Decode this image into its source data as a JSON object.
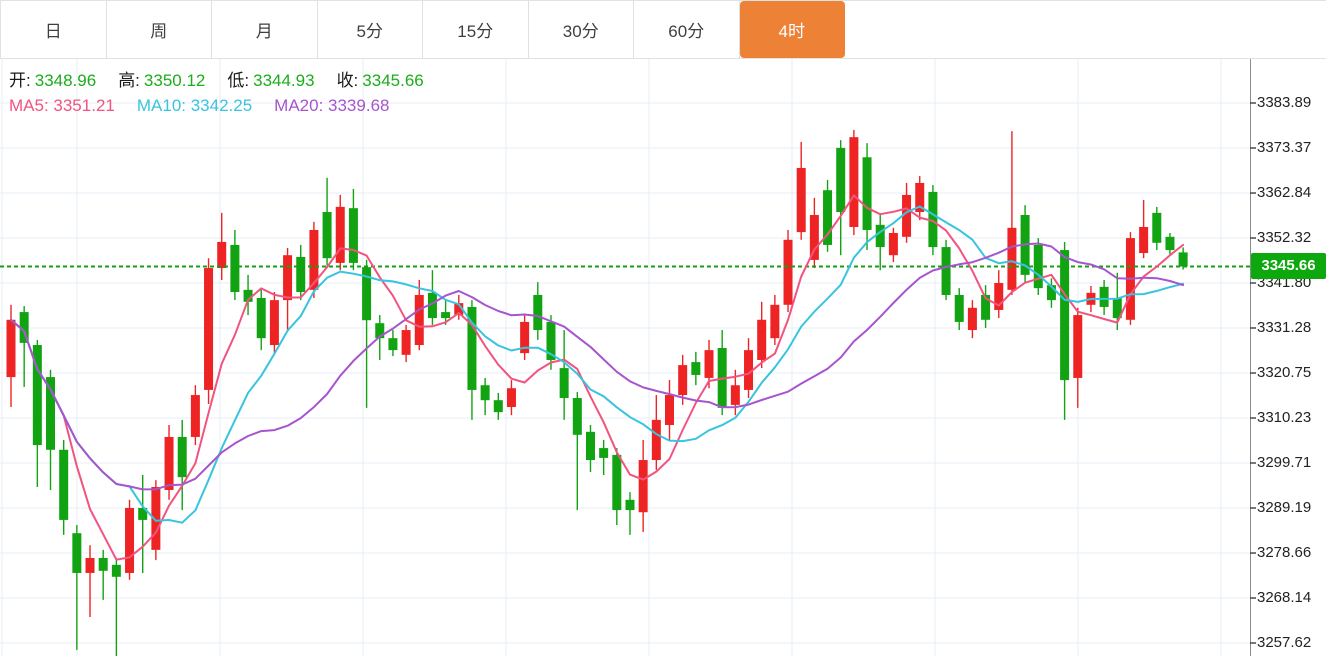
{
  "toolbar": {
    "tabs": [
      {
        "label": "日",
        "active": false
      },
      {
        "label": "周",
        "active": false
      },
      {
        "label": "月",
        "active": false
      },
      {
        "label": "5分",
        "active": false
      },
      {
        "label": "15分",
        "active": false
      },
      {
        "label": "30分",
        "active": false
      },
      {
        "label": "60分",
        "active": false
      },
      {
        "label": "4时",
        "active": true
      }
    ],
    "active_tab_color": "#ed8236"
  },
  "info": {
    "ohlc": [
      {
        "label": "开:",
        "value": "3348.96"
      },
      {
        "label": "高:",
        "value": "3350.12"
      },
      {
        "label": "低:",
        "value": "3344.93"
      },
      {
        "label": "收:",
        "value": "3345.66"
      }
    ],
    "ohlc_value_color": "#1bad1b",
    "ma": [
      {
        "label": "MA5:",
        "value": "3351.21",
        "color": "#f2537f"
      },
      {
        "label": "MA10:",
        "value": "3342.25",
        "color": "#38c4df"
      },
      {
        "label": "MA20:",
        "value": "3339.68",
        "color": "#a655cd"
      }
    ]
  },
  "axis": {
    "max": 3383.89,
    "min": 3257.62,
    "labels": [
      "3383.89",
      "3373.37",
      "3362.84",
      "3352.32",
      "3341.80",
      "3331.28",
      "3320.75",
      "3310.23",
      "3299.71",
      "3289.19",
      "3278.66",
      "3268.14",
      "3257.62"
    ]
  },
  "last_price": {
    "value": "3345.66",
    "badge_color": "#0da80d",
    "line_color": "#14a114"
  },
  "chart_data": {
    "type": "candlestick",
    "title": "",
    "legend": [
      "MA5",
      "MA10",
      "MA20"
    ],
    "up_color": "#ee2424",
    "down_color": "#12a312",
    "grid_color": "#e7eef5",
    "axis_line_color": "#8c8c8c",
    "ylim": [
      3254.0,
      3393.6
    ],
    "candles_format": [
      "open",
      "high",
      "low",
      "close"
    ],
    "candles": [
      [
        3319.8,
        3336.7,
        3312.8,
        3333.2
      ],
      [
        3335.0,
        3336.4,
        3317.5,
        3327.8
      ],
      [
        3327.3,
        3328.5,
        3294.1,
        3303.9
      ],
      [
        3319.8,
        3321.5,
        3293.4,
        3302.8
      ],
      [
        3302.8,
        3305.1,
        3282.9,
        3286.4
      ],
      [
        3283.3,
        3285.2,
        3256.0,
        3274.0
      ],
      [
        3274.0,
        3280.5,
        3263.7,
        3277.5
      ],
      [
        3277.5,
        3279.4,
        3267.7,
        3274.5
      ],
      [
        3275.9,
        3277.5,
        3254.3,
        3273.1
      ],
      [
        3274.0,
        3291.1,
        3272.4,
        3289.2
      ],
      [
        3289.2,
        3296.9,
        3274.0,
        3286.4
      ],
      [
        3279.4,
        3295.7,
        3277.0,
        3294.1
      ],
      [
        3293.4,
        3308.6,
        3291.1,
        3305.8
      ],
      [
        3305.8,
        3309.8,
        3288.7,
        3296.4
      ],
      [
        3305.8,
        3317.9,
        3303.9,
        3315.6
      ],
      [
        3316.8,
        3347.6,
        3313.5,
        3345.3
      ],
      [
        3345.3,
        3358.2,
        3342.5,
        3351.4
      ],
      [
        3350.7,
        3354.2,
        3337.8,
        3339.7
      ],
      [
        3340.2,
        3343.7,
        3334.3,
        3337.4
      ],
      [
        3338.3,
        3340.2,
        3326.1,
        3328.9
      ],
      [
        3327.3,
        3339.7,
        3325.0,
        3337.8
      ],
      [
        3337.8,
        3350.0,
        3330.8,
        3348.3
      ],
      [
        3347.9,
        3350.7,
        3337.8,
        3339.7
      ],
      [
        3340.2,
        3356.1,
        3338.3,
        3354.2
      ],
      [
        3358.4,
        3366.4,
        3345.9,
        3347.6
      ],
      [
        3346.5,
        3362.4,
        3344.8,
        3359.6
      ],
      [
        3359.3,
        3363.8,
        3344.8,
        3346.5
      ],
      [
        3345.5,
        3347.2,
        3312.6,
        3333.1
      ],
      [
        3332.4,
        3334.3,
        3323.8,
        3328.9
      ],
      [
        3328.9,
        3330.8,
        3324.7,
        3326.1
      ],
      [
        3325.0,
        3332.0,
        3323.3,
        3330.8
      ],
      [
        3327.3,
        3342.5,
        3326.1,
        3339.0
      ],
      [
        3339.5,
        3344.8,
        3332.0,
        3333.6
      ],
      [
        3335.0,
        3337.8,
        3332.0,
        3333.6
      ],
      [
        3334.3,
        3339.0,
        3333.2,
        3337.1
      ],
      [
        3336.2,
        3337.8,
        3309.8,
        3316.8
      ],
      [
        3317.9,
        3319.6,
        3310.9,
        3314.4
      ],
      [
        3314.4,
        3316.1,
        3309.8,
        3311.6
      ],
      [
        3312.8,
        3319.1,
        3310.9,
        3317.2
      ],
      [
        3325.4,
        3334.3,
        3323.8,
        3332.7
      ],
      [
        3339.0,
        3342.0,
        3328.5,
        3330.8
      ],
      [
        3332.7,
        3334.3,
        3321.5,
        3323.8
      ],
      [
        3321.9,
        3330.8,
        3309.8,
        3314.9
      ],
      [
        3314.9,
        3316.3,
        3288.7,
        3306.3
      ],
      [
        3307.0,
        3308.6,
        3297.6,
        3300.4
      ],
      [
        3303.2,
        3305.1,
        3296.9,
        3300.9
      ],
      [
        3301.6,
        3303.2,
        3285.2,
        3288.7
      ],
      [
        3291.1,
        3292.9,
        3282.9,
        3288.7
      ],
      [
        3288.2,
        3305.1,
        3283.6,
        3300.4
      ],
      [
        3300.4,
        3315.6,
        3298.1,
        3309.8
      ],
      [
        3308.6,
        3319.1,
        3305.1,
        3315.6
      ],
      [
        3315.6,
        3325.0,
        3313.3,
        3322.6
      ],
      [
        3323.3,
        3325.7,
        3317.9,
        3320.3
      ],
      [
        3319.6,
        3328.5,
        3317.2,
        3326.1
      ],
      [
        3326.6,
        3330.8,
        3310.9,
        3312.6
      ],
      [
        3313.3,
        3321.5,
        3310.9,
        3317.9
      ],
      [
        3316.8,
        3328.9,
        3314.9,
        3326.1
      ],
      [
        3323.8,
        3337.4,
        3321.9,
        3333.2
      ],
      [
        3328.9,
        3339.0,
        3327.3,
        3336.7
      ],
      [
        3336.7,
        3354.2,
        3335.0,
        3351.9
      ],
      [
        3353.7,
        3374.8,
        3351.9,
        3368.7
      ],
      [
        3347.2,
        3361.7,
        3345.3,
        3357.7
      ],
      [
        3363.5,
        3365.9,
        3349.1,
        3350.7
      ],
      [
        3373.4,
        3375.2,
        3348.3,
        3358.4
      ],
      [
        3354.9,
        3377.6,
        3353.0,
        3375.9
      ],
      [
        3371.2,
        3374.5,
        3349.5,
        3354.2
      ],
      [
        3355.4,
        3357.7,
        3344.8,
        3350.2
      ],
      [
        3348.3,
        3354.7,
        3346.7,
        3353.5
      ],
      [
        3352.6,
        3365.2,
        3351.2,
        3362.4
      ],
      [
        3358.4,
        3366.8,
        3356.5,
        3365.2
      ],
      [
        3363.1,
        3364.7,
        3348.3,
        3350.2
      ],
      [
        3350.2,
        3351.9,
        3337.8,
        3339.0
      ],
      [
        3339.0,
        3340.6,
        3330.8,
        3332.7
      ],
      [
        3330.8,
        3337.8,
        3328.9,
        3336.0
      ],
      [
        3339.0,
        3341.3,
        3331.3,
        3333.2
      ],
      [
        3335.5,
        3344.8,
        3333.6,
        3341.8
      ],
      [
        3340.2,
        3377.3,
        3339.0,
        3354.7
      ],
      [
        3357.7,
        3360.0,
        3341.8,
        3343.7
      ],
      [
        3350.7,
        3352.3,
        3339.0,
        3340.6
      ],
      [
        3341.3,
        3342.9,
        3336.0,
        3337.8
      ],
      [
        3349.5,
        3351.4,
        3309.8,
        3319.1
      ],
      [
        3319.6,
        3336.0,
        3312.6,
        3334.3
      ],
      [
        3336.7,
        3341.1,
        3335.0,
        3339.5
      ],
      [
        3340.9,
        3342.5,
        3334.3,
        3336.2
      ],
      [
        3338.3,
        3344.2,
        3330.8,
        3333.6
      ],
      [
        3333.2,
        3353.7,
        3332.0,
        3352.3
      ],
      [
        3348.8,
        3361.2,
        3347.6,
        3354.9
      ],
      [
        3358.2,
        3359.6,
        3349.5,
        3351.2
      ],
      [
        3352.6,
        3353.5,
        3348.3,
        3349.5
      ],
      [
        3348.96,
        3350.12,
        3344.93,
        3345.66
      ]
    ],
    "overlays": [
      {
        "name": "MA5",
        "window": 5,
        "color": "#f2537f"
      },
      {
        "name": "MA10",
        "window": 10,
        "color": "#38c4df"
      },
      {
        "name": "MA20",
        "window": 20,
        "color": "#a655cd"
      }
    ],
    "last_close_line": 3345.66
  }
}
